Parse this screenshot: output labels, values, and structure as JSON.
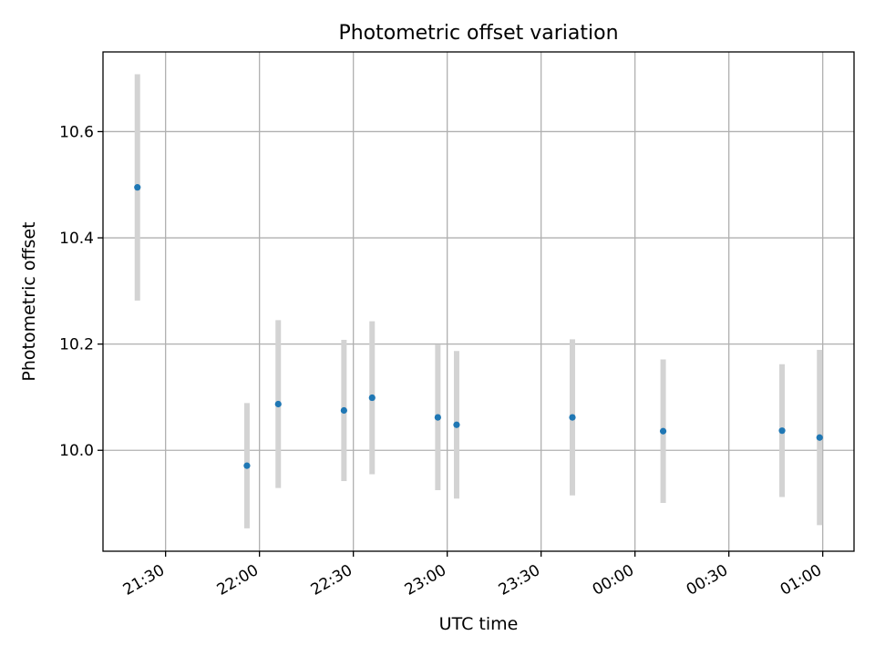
{
  "chart_data": {
    "type": "scatter",
    "title": "Photometric offset variation",
    "xlabel": "UTC time",
    "ylabel": "Photometric offset",
    "x_ticks": [
      "21:30",
      "22:00",
      "22:30",
      "23:00",
      "23:30",
      "00:00",
      "00:30",
      "01:00"
    ],
    "x_tick_times": [
      "21:30",
      "22:00",
      "22:30",
      "23:00",
      "23:30",
      "24:00",
      "24:30",
      "25:00"
    ],
    "xlim": [
      "21:10",
      "25:10"
    ],
    "y_ticks": [
      "10.0",
      "10.2",
      "10.4",
      "10.6"
    ],
    "y_tick_values": [
      10.0,
      10.2,
      10.4,
      10.6
    ],
    "ylim": [
      9.81,
      10.75
    ],
    "grid": true,
    "series": [
      {
        "color": "#1f77b4",
        "error_color": "#d3d3d3",
        "points": [
          {
            "t": "21:21",
            "y": 10.495,
            "err": 0.213
          },
          {
            "t": "21:56",
            "y": 9.971,
            "err": 0.118
          },
          {
            "t": "22:06",
            "y": 10.087,
            "err": 0.158
          },
          {
            "t": "22:27",
            "y": 10.075,
            "err": 0.133
          },
          {
            "t": "22:36",
            "y": 10.099,
            "err": 0.144
          },
          {
            "t": "22:57",
            "y": 10.062,
            "err": 0.137
          },
          {
            "t": "23:03",
            "y": 10.048,
            "err": 0.139
          },
          {
            "t": "23:40",
            "y": 10.062,
            "err": 0.147
          },
          {
            "t": "24:09",
            "y": 10.036,
            "err": 0.135
          },
          {
            "t": "24:47",
            "y": 10.037,
            "err": 0.125
          },
          {
            "t": "24:59",
            "y": 10.024,
            "err": 0.165
          }
        ]
      }
    ]
  }
}
